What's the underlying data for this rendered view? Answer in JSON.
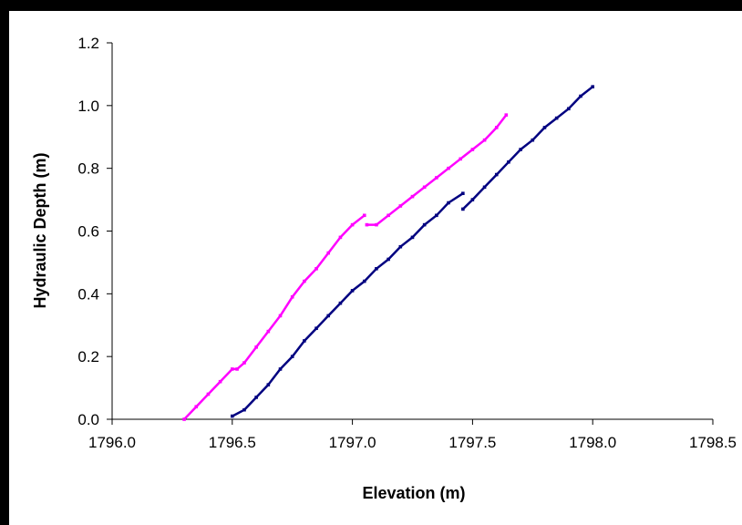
{
  "chart_data": {
    "type": "scatter",
    "title": "",
    "xlabel": "Elevation (m)",
    "ylabel": "Hydraulic Depth (m)",
    "xlim": [
      1796.0,
      1798.5
    ],
    "ylim": [
      0.0,
      1.2
    ],
    "xticks": [
      "1796.0",
      "1796.5",
      "1797.0",
      "1797.5",
      "1798.0",
      "1798.5"
    ],
    "yticks": [
      "0.0",
      "0.2",
      "0.4",
      "0.6",
      "0.8",
      "1.0",
      "1.2"
    ],
    "grid": false,
    "legend": "none",
    "series": [
      {
        "color": "#ff00ff",
        "marker": "small-square",
        "segments": [
          [
            [
              1796.3,
              0.0
            ],
            [
              1796.35,
              0.04
            ],
            [
              1796.4,
              0.08
            ],
            [
              1796.45,
              0.12
            ],
            [
              1796.5,
              0.16
            ],
            [
              1796.52,
              0.16
            ],
            [
              1796.55,
              0.18
            ],
            [
              1796.6,
              0.23
            ],
            [
              1796.65,
              0.28
            ],
            [
              1796.7,
              0.33
            ],
            [
              1796.75,
              0.39
            ],
            [
              1796.8,
              0.44
            ],
            [
              1796.85,
              0.48
            ],
            [
              1796.9,
              0.53
            ],
            [
              1796.95,
              0.58
            ],
            [
              1797.0,
              0.62
            ],
            [
              1797.05,
              0.65
            ]
          ],
          [
            [
              1797.06,
              0.62
            ],
            [
              1797.1,
              0.62
            ],
            [
              1797.15,
              0.65
            ],
            [
              1797.2,
              0.68
            ],
            [
              1797.25,
              0.71
            ],
            [
              1797.3,
              0.74
            ],
            [
              1797.35,
              0.77
            ],
            [
              1797.4,
              0.8
            ],
            [
              1797.45,
              0.83
            ],
            [
              1797.5,
              0.86
            ],
            [
              1797.55,
              0.89
            ],
            [
              1797.6,
              0.93
            ],
            [
              1797.64,
              0.97
            ]
          ]
        ]
      },
      {
        "color": "#000080",
        "marker": "small-square",
        "segments": [
          [
            [
              1796.5,
              0.01
            ],
            [
              1796.55,
              0.03
            ],
            [
              1796.6,
              0.07
            ],
            [
              1796.65,
              0.11
            ],
            [
              1796.7,
              0.16
            ],
            [
              1796.75,
              0.2
            ],
            [
              1796.8,
              0.25
            ],
            [
              1796.85,
              0.29
            ],
            [
              1796.9,
              0.33
            ],
            [
              1796.95,
              0.37
            ],
            [
              1797.0,
              0.41
            ],
            [
              1797.05,
              0.44
            ],
            [
              1797.1,
              0.48
            ],
            [
              1797.15,
              0.51
            ],
            [
              1797.2,
              0.55
            ],
            [
              1797.25,
              0.58
            ],
            [
              1797.3,
              0.62
            ],
            [
              1797.35,
              0.65
            ],
            [
              1797.4,
              0.69
            ],
            [
              1797.46,
              0.72
            ]
          ],
          [
            [
              1797.46,
              0.67
            ],
            [
              1797.5,
              0.7
            ],
            [
              1797.55,
              0.74
            ],
            [
              1797.6,
              0.78
            ],
            [
              1797.65,
              0.82
            ],
            [
              1797.7,
              0.86
            ],
            [
              1797.75,
              0.89
            ],
            [
              1797.8,
              0.93
            ],
            [
              1797.85,
              0.96
            ],
            [
              1797.9,
              0.99
            ],
            [
              1797.95,
              1.03
            ],
            [
              1798.0,
              1.06
            ]
          ]
        ]
      }
    ]
  }
}
